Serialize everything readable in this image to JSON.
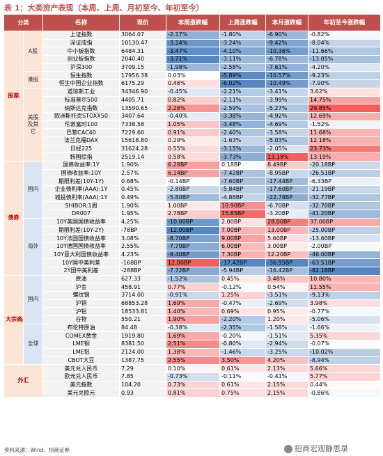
{
  "title": "表 1：大类资产表现（本周、上周、月初至今、年初至今）",
  "headers": [
    "分类",
    "名称",
    "现价",
    "本周涨跌幅",
    "上周涨跌幅",
    "本月涨跌幅",
    "年初至今涨跌幅"
  ],
  "groups": [
    {
      "label": "股票",
      "subgroups": [
        {
          "label": "A股",
          "rows": [
            [
              "上证指数",
              "3064.07",
              "-2.17%",
              "-1.80%",
              "-6.90%",
              "-0.82%"
            ],
            [
              "深证成指",
              "10130.47",
              "-3.14%",
              "-3.24%",
              "-9.42%",
              "-8.04%"
            ],
            [
              "中小板指数",
              "6484.31",
              "-3.47%",
              "-4.10%",
              "-10.36%",
              "-11.66%"
            ],
            [
              "创业板指数",
              "2040.40",
              "-3.71%",
              "-3.11%",
              "-6.78%",
              "-13.05%"
            ],
            [
              "沪深300",
              "3709.15",
              "-1.98%",
              "-2.58%",
              "-7.61%",
              "-4.20%"
            ]
          ]
        },
        {
          "label": "港股",
          "rows": [
            [
              "恒生指数",
              "17956.38",
              "0.03%",
              "-5.89%",
              "-10.57%",
              "-9.23%"
            ],
            [
              "恒生中国企业指数",
              "6175.29",
              "0.46%",
              "-6.02%",
              "-10.49%",
              "-7.90%"
            ]
          ]
        },
        {
          "label": "美股及其它",
          "rows": [
            [
              "道琼斯工业",
              "34346.90",
              "-0.45%",
              "-2.21%",
              "-3.41%",
              "3.62%"
            ],
            [
              "标准普尔500",
              "4405.71",
              "0.82%",
              "-2.11%",
              "-3.99%",
              "14.75%"
            ],
            [
              "纳斯达克指数",
              "13590.65",
              "2.26%",
              "-2.59%",
              "-5.27%",
              "29.85%"
            ],
            [
              "欧洲斯托克STOXX50",
              "3407.64",
              "-0.40%",
              "-3.38%",
              "-4.92%",
              "12.69%"
            ],
            [
              "伦敦富时100",
              "7338.58",
              "1.05%",
              "-3.48%",
              "-4.69%",
              "-1.52%"
            ],
            [
              "巴黎CAC40",
              "7229.60",
              "0.91%",
              "-2.40%",
              "-3.58%",
              "11.68%"
            ],
            [
              "法兰克福DAX",
              "15618.80",
              "0.29%",
              "-1.63%",
              "-5.03%",
              "12.18%"
            ],
            [
              "日经225",
              "31624.28",
              "0.55%",
              "-3.15%",
              "-2.05%",
              "23.73%"
            ],
            [
              "韩国综指",
              "2519.14",
              "0.58%",
              "-3.73%",
              "13.19%",
              "13.19%"
            ]
          ]
        }
      ]
    },
    {
      "label": "债券",
      "subgroups": [
        {
          "label": "国内",
          "rows": [
            [
              "国债收益率:1Y",
              "1.90%",
              "6.28BP",
              "0.18BP",
              "8.49BP",
              "-20.18BP"
            ],
            [
              "国债收益率:10Y",
              "2.57%",
              "6.14BP",
              "-7.42BP",
              "-8.95BP",
              "-26.51BP"
            ],
            [
              "期限利差(10Y-1Y)",
              "0.68%",
              "-0.14BP",
              "-7.60BP",
              "-17.44BP",
              "-6.33BP"
            ],
            [
              "企业债利率(AAA):1Y",
              "0.45%",
              "-2.80BP",
              "-5.84BP",
              "-17.60BP",
              "-21.19BP"
            ],
            [
              "城投债利率(AAA):1Y",
              "0.49%",
              "-5.80BP",
              "-4.88BP",
              "-22.78BP",
              "-32.77BP"
            ],
            [
              "SHIBOR:1周",
              "1.90%",
              "1.00BP",
              "10.90BP",
              "-6.70BP",
              "-32.70BP"
            ],
            [
              "DR007",
              "1.95%",
              "2.78BP",
              "15.85BP",
              "-3.20BP",
              "-41.20BP"
            ]
          ]
        },
        {
          "label": "海外",
          "rows": [
            [
              "10Y美国国债收益率",
              "4.25%",
              "-10.00BP",
              "2.00BP",
              "28.00BP",
              "37.00BP"
            ],
            [
              "期限利差(10Y-2Y)",
              "-78BP",
              "-12.00BP",
              "7.00BP",
              "13.00BP",
              "-25.00BP"
            ],
            [
              "10Y法国国债收益率",
              "3.08%",
              "-8.70BP",
              "9.00BP",
              "5.60BP",
              "-13.60BP"
            ],
            [
              "10Y德国国债收益率",
              "2.55%",
              "-7.70BP",
              "6.00BP",
              "3.00BP",
              "-2.00BP"
            ],
            [
              "10Y意大利国债收益率",
              "4.23%",
              "-9.40BP",
              "7.30BP",
              "12.20BP",
              "-46.00BP"
            ],
            [
              "10Y国中美利差",
              "-168BP",
              "12.00BP",
              "-17.42BP",
              "-36.95BP",
              "-63.51BP"
            ],
            [
              "2Y国中美利差",
              "-288BP",
              "-7.72BP",
              "-5.94BP",
              "-16.42BP",
              "-82.18BP"
            ]
          ]
        }
      ]
    },
    {
      "label": "大宗商品",
      "subgroups": [
        {
          "label": "国内",
          "rows": [
            [
              "原油",
              "627.33",
              "-1.52%",
              "0.45%",
              "3.48%",
              "10.80%"
            ],
            [
              "沪金",
              "458.91",
              "0.77%",
              "-0.12%",
              "0.54%",
              "11.55%"
            ],
            [
              "螺纹钢",
              "3714.00",
              "-0.91%",
              "1.25%",
              "-3.51%",
              "-9.13%"
            ],
            [
              "沪铜",
              "68853.28",
              "1.69%",
              "-0.47%",
              "-2.69%",
              "3.98%"
            ],
            [
              "沪铝",
              "18533.81",
              "1.40%",
              "0.69%",
              "0.95%",
              "-0.77%"
            ],
            [
              "谷物",
              "550.21",
              "1.90%",
              "-2.20%",
              "1.20%",
              "-5.06%"
            ]
          ]
        },
        {
          "label": "全球",
          "rows": [
            [
              "布伦特原油",
              "84.48",
              "-0.38%",
              "-2.35%",
              "-1.58%",
              "-1.66%"
            ],
            [
              "COMEX黄金",
              "1919.80",
              "1.69%",
              "-0.20%",
              "-1.51%",
              "5.35%"
            ],
            [
              "LME铜",
              "8381.50",
              "2.51%",
              "-0.80%",
              "-2.94%",
              "-0.07%"
            ],
            [
              "LME铝",
              "2124.00",
              "1.38%",
              "-1.46%",
              "-3.25%",
              "-10.02%"
            ],
            [
              "CBOT大豆",
              "1387.75",
              "2.55%",
              "3.50%",
              "4.20%",
              "-8.94%"
            ]
          ]
        }
      ]
    },
    {
      "label": "外汇",
      "subgroups": [
        {
          "label": "",
          "rows": [
            [
              "美元兑人民币",
              "7.29",
              "0.10%",
              "0.61%",
              "2.13%",
              "5.66%"
            ],
            [
              "欧元兑人民币",
              "7.85",
              "-0.73%",
              "-0.11%",
              "-0.41%",
              "5.77%"
            ],
            [
              "美元指数",
              "104.20",
              "0.73%",
              "0.61%",
              "2.15%",
              "0.44%"
            ],
            [
              "美元兑欧元",
              "0.93",
              "0.81%",
              "0.75%",
              "2.15%",
              "-0.86%"
            ]
          ]
        }
      ]
    }
  ],
  "colors": {
    "header": "#c0504d",
    "category_bg": "#fbe5d6",
    "blue_strong": "#4f81bd",
    "red_strong": "#f25757"
  },
  "source": "资料来源：Wind，招商证券",
  "watermark": "招商宏观静思录"
}
